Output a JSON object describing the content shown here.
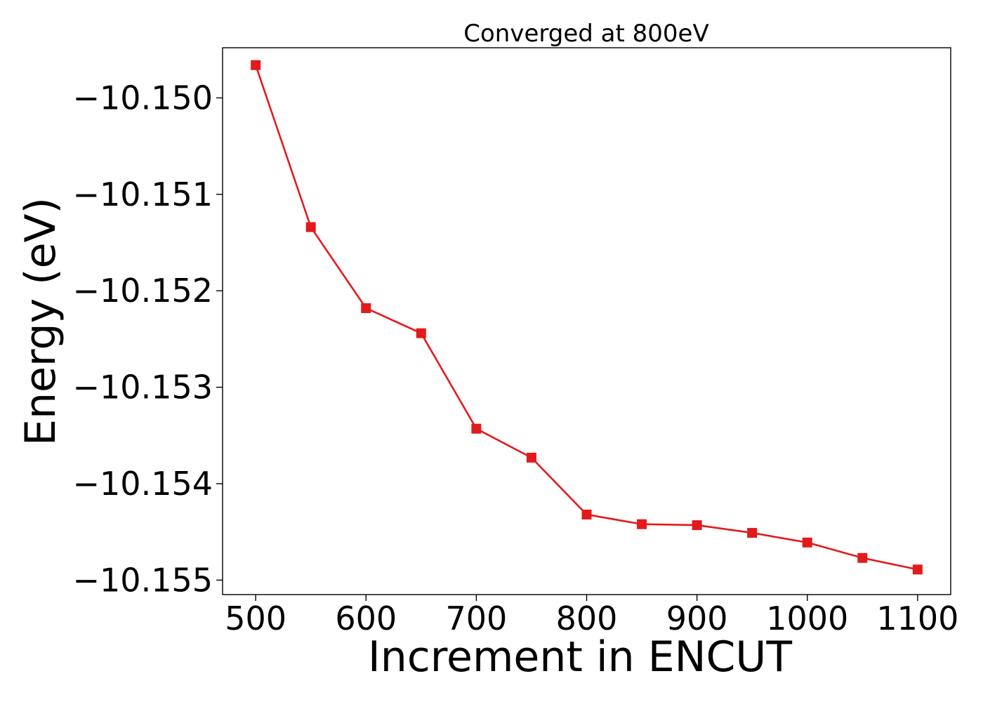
{
  "chart_data": {
    "type": "line",
    "title": "Converged at 800eV",
    "xlabel": "Increment in ENCUT",
    "ylabel": "Energy (eV)",
    "xlim": [
      470,
      1130
    ],
    "ylim": [
      -10.15515,
      -10.14948
    ],
    "x_ticks": [
      500,
      600,
      700,
      800,
      900,
      1000,
      1100
    ],
    "x_tick_labels": [
      "500",
      "600",
      "700",
      "800",
      "900",
      "1000",
      "1100"
    ],
    "y_ticks": [
      -10.15,
      -10.151,
      -10.152,
      -10.153,
      -10.154,
      -10.155
    ],
    "y_tick_labels": [
      "−10.150",
      "−10.151",
      "−10.152",
      "−10.153",
      "−10.154",
      "−10.155"
    ],
    "grid": false,
    "legend": "none",
    "series": [
      {
        "color": "#e31a1c",
        "marker": "square",
        "x": [
          500,
          550,
          600,
          650,
          700,
          750,
          800,
          850,
          900,
          950,
          1000,
          1050,
          1100
        ],
        "y": [
          -10.14966,
          -10.15134,
          -10.15218,
          -10.15244,
          -10.15343,
          -10.15373,
          -10.15432,
          -10.15442,
          -10.15443,
          -10.15451,
          -10.15461,
          -10.15477,
          -10.15489
        ]
      }
    ]
  }
}
